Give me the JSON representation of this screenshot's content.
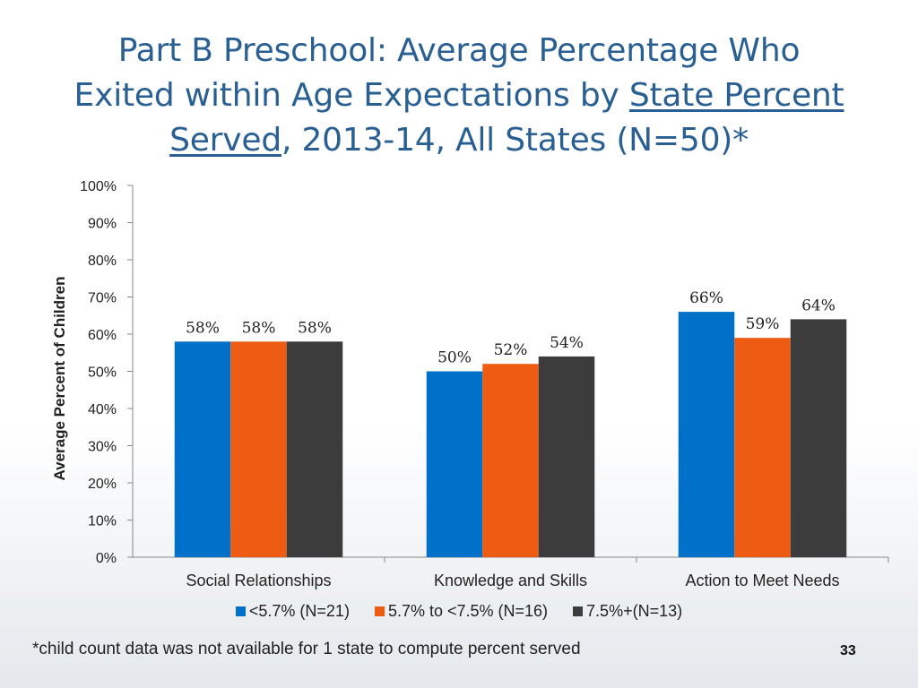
{
  "title": {
    "line1": "Part B Preschool: Average Percentage Who",
    "line2_pre": "Exited within Age Expectations by ",
    "line2_underlined": "State Percent",
    "line3_underlined": "Served",
    "line3_post": ", 2013-14,  All States (N=50)*"
  },
  "chart_data": {
    "type": "bar",
    "title": "Part B Preschool: Average Percentage Who Exited within Age Expectations by State Percent Served, 2013-14, All States (N=50)*",
    "xlabel": "",
    "ylabel": "Average Percent of Children",
    "ylim": [
      0,
      100
    ],
    "yticks": [
      "0%",
      "10%",
      "20%",
      "30%",
      "40%",
      "50%",
      "60%",
      "70%",
      "80%",
      "90%",
      "100%"
    ],
    "categories": [
      "Social Relationships",
      "Knowledge and Skills",
      "Action to Meet Needs"
    ],
    "series": [
      {
        "name": "<5.7% (N=21)",
        "color": "#0070c8",
        "values": [
          58,
          50,
          66
        ],
        "labels": [
          "58%",
          "50%",
          "66%"
        ]
      },
      {
        "name": "5.7% to <7.5% (N=16)",
        "color": "#ee5c14",
        "values": [
          58,
          52,
          59
        ],
        "labels": [
          "58%",
          "52%",
          "59%"
        ]
      },
      {
        "name": "7.5%+(N=13)",
        "color": "#3c3c3c",
        "values": [
          58,
          54,
          64
        ],
        "labels": [
          "58%",
          "54%",
          "64%"
        ]
      }
    ],
    "legend_position": "bottom",
    "grid": false
  },
  "footnote": "*child count data was not available for 1 state to compute percent served",
  "page_number": "33"
}
